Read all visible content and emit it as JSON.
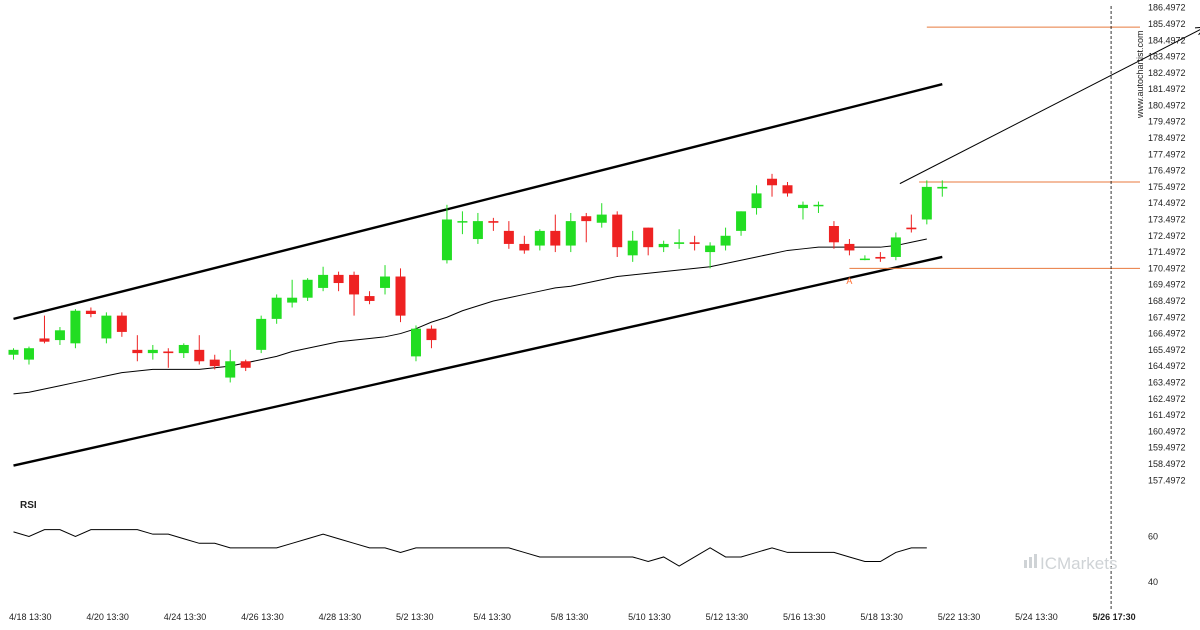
{
  "chart_data": [
    {
      "type": "candlestick",
      "y_ticks": [
        "186.4972",
        "185.4972",
        "184.4972",
        "183.4972",
        "182.4972",
        "181.4972",
        "180.4972",
        "179.4972",
        "178.4972",
        "177.4972",
        "176.4972",
        "175.4972",
        "174.4972",
        "173.4972",
        "172.4972",
        "171.4972",
        "170.4972",
        "169.4972",
        "168.4972",
        "167.4972",
        "166.4972",
        "165.4972",
        "164.4972",
        "163.4972",
        "162.4972",
        "161.4972",
        "160.4972",
        "159.4972",
        "158.4972",
        "157.4972"
      ],
      "ylim": [
        156.9,
        186.6
      ],
      "x_ticks": [
        "4/18 13:30",
        "4/20 13:30",
        "4/24 13:30",
        "4/26 13:30",
        "4/28 13:30",
        "5/2 13:30",
        "5/4 13:30",
        "5/8 13:30",
        "5/10 13:30",
        "5/12 13:30",
        "5/16 13:30",
        "5/18 13:30",
        "5/22 13:30",
        "5/24 13:30",
        "5/26 17:30"
      ],
      "x_tick_index": [
        1,
        6,
        11,
        16,
        21,
        26,
        31,
        36,
        41,
        46,
        51,
        56,
        61,
        66,
        71
      ],
      "candles": [
        {
          "o": 165.2,
          "h": 165.6,
          "l": 164.9,
          "c": 165.5
        },
        {
          "o": 164.9,
          "h": 165.7,
          "l": 164.6,
          "c": 165.6
        },
        {
          "o": 166.2,
          "h": 167.6,
          "l": 165.9,
          "c": 166.0
        },
        {
          "o": 166.1,
          "h": 166.9,
          "l": 165.8,
          "c": 166.7
        },
        {
          "o": 165.9,
          "h": 168.0,
          "l": 165.6,
          "c": 167.9
        },
        {
          "o": 167.9,
          "h": 168.1,
          "l": 167.5,
          "c": 167.7
        },
        {
          "o": 166.2,
          "h": 167.8,
          "l": 165.9,
          "c": 167.6
        },
        {
          "o": 167.6,
          "h": 167.8,
          "l": 166.3,
          "c": 166.6
        },
        {
          "o": 165.5,
          "h": 166.4,
          "l": 164.8,
          "c": 165.3
        },
        {
          "o": 165.3,
          "h": 165.8,
          "l": 164.9,
          "c": 165.5
        },
        {
          "o": 165.4,
          "h": 165.6,
          "l": 164.4,
          "c": 165.3
        },
        {
          "o": 165.3,
          "h": 165.9,
          "l": 165.0,
          "c": 165.8
        },
        {
          "o": 165.5,
          "h": 166.4,
          "l": 164.6,
          "c": 164.8
        },
        {
          "o": 164.9,
          "h": 165.2,
          "l": 164.3,
          "c": 164.5
        },
        {
          "o": 163.8,
          "h": 165.5,
          "l": 163.5,
          "c": 164.8
        },
        {
          "o": 164.8,
          "h": 164.9,
          "l": 164.2,
          "c": 164.4
        },
        {
          "o": 165.5,
          "h": 167.6,
          "l": 165.3,
          "c": 167.4
        },
        {
          "o": 167.4,
          "h": 168.9,
          "l": 167.1,
          "c": 168.7
        },
        {
          "o": 168.4,
          "h": 169.8,
          "l": 168.1,
          "c": 168.7
        },
        {
          "o": 168.7,
          "h": 169.9,
          "l": 168.5,
          "c": 169.8
        },
        {
          "o": 169.3,
          "h": 170.6,
          "l": 169.1,
          "c": 170.1
        },
        {
          "o": 170.1,
          "h": 170.3,
          "l": 169.1,
          "c": 169.6
        },
        {
          "o": 170.1,
          "h": 170.3,
          "l": 167.6,
          "c": 168.9
        },
        {
          "o": 168.8,
          "h": 169.1,
          "l": 168.3,
          "c": 168.5
        },
        {
          "o": 169.3,
          "h": 170.7,
          "l": 168.9,
          "c": 170.0
        },
        {
          "o": 170.0,
          "h": 170.5,
          "l": 167.2,
          "c": 167.6
        },
        {
          "o": 165.1,
          "h": 167.0,
          "l": 164.8,
          "c": 166.8
        },
        {
          "o": 166.8,
          "h": 167.0,
          "l": 165.6,
          "c": 166.1
        },
        {
          "o": 171.0,
          "h": 174.4,
          "l": 170.8,
          "c": 173.5
        },
        {
          "o": 173.4,
          "h": 174.0,
          "l": 172.6,
          "c": 173.4
        },
        {
          "o": 172.3,
          "h": 173.9,
          "l": 172.0,
          "c": 173.4
        },
        {
          "o": 173.4,
          "h": 173.6,
          "l": 172.8,
          "c": 173.3
        },
        {
          "o": 172.8,
          "h": 173.4,
          "l": 171.7,
          "c": 172.0
        },
        {
          "o": 172.0,
          "h": 172.5,
          "l": 171.4,
          "c": 171.6
        },
        {
          "o": 171.9,
          "h": 172.9,
          "l": 171.6,
          "c": 172.8
        },
        {
          "o": 172.8,
          "h": 173.8,
          "l": 171.5,
          "c": 171.9
        },
        {
          "o": 171.9,
          "h": 173.9,
          "l": 171.5,
          "c": 173.4
        },
        {
          "o": 173.7,
          "h": 173.9,
          "l": 172.1,
          "c": 173.4
        },
        {
          "o": 173.3,
          "h": 174.5,
          "l": 173.0,
          "c": 173.8
        },
        {
          "o": 173.8,
          "h": 174.0,
          "l": 171.2,
          "c": 171.8
        },
        {
          "o": 171.3,
          "h": 172.8,
          "l": 170.9,
          "c": 172.2
        },
        {
          "o": 173.0,
          "h": 173.0,
          "l": 171.3,
          "c": 171.8
        },
        {
          "o": 171.8,
          "h": 172.2,
          "l": 171.5,
          "c": 172.0
        },
        {
          "o": 172.0,
          "h": 172.9,
          "l": 171.7,
          "c": 172.1
        },
        {
          "o": 172.1,
          "h": 172.5,
          "l": 171.6,
          "c": 172.0
        },
        {
          "o": 171.5,
          "h": 172.1,
          "l": 170.5,
          "c": 171.9
        },
        {
          "o": 171.9,
          "h": 173.0,
          "l": 171.6,
          "c": 172.5
        },
        {
          "o": 172.8,
          "h": 174.0,
          "l": 172.5,
          "c": 174.0
        },
        {
          "o": 174.2,
          "h": 175.6,
          "l": 173.8,
          "c": 175.1
        },
        {
          "o": 176.0,
          "h": 176.3,
          "l": 174.9,
          "c": 175.6
        },
        {
          "o": 175.6,
          "h": 175.8,
          "l": 174.9,
          "c": 175.1
        },
        {
          "o": 174.2,
          "h": 174.6,
          "l": 173.5,
          "c": 174.4
        },
        {
          "o": 174.4,
          "h": 174.6,
          "l": 173.9,
          "c": 174.4
        },
        {
          "o": 173.1,
          "h": 173.4,
          "l": 171.7,
          "c": 172.1
        },
        {
          "o": 172.0,
          "h": 172.3,
          "l": 171.3,
          "c": 171.6
        },
        {
          "o": 171.1,
          "h": 171.3,
          "l": 171.0,
          "c": 171.1
        },
        {
          "o": 171.2,
          "h": 171.5,
          "l": 170.9,
          "c": 171.1
        },
        {
          "o": 171.2,
          "h": 172.7,
          "l": 171.0,
          "c": 172.4
        },
        {
          "o": 173.0,
          "h": 173.8,
          "l": 172.7,
          "c": 172.9
        },
        {
          "o": 173.5,
          "h": 175.9,
          "l": 173.2,
          "c": 175.5
        },
        {
          "o": 175.4,
          "h": 175.9,
          "l": 174.9,
          "c": 175.5
        }
      ],
      "sma": [
        162.8,
        162.9,
        163.1,
        163.3,
        163.5,
        163.7,
        163.9,
        164.1,
        164.2,
        164.3,
        164.3,
        164.3,
        164.3,
        164.4,
        164.5,
        164.7,
        164.9,
        165.1,
        165.4,
        165.6,
        165.8,
        166.0,
        166.1,
        166.2,
        166.3,
        166.5,
        166.8,
        167.2,
        167.5,
        167.9,
        168.2,
        168.5,
        168.7,
        168.9,
        169.1,
        169.3,
        169.4,
        169.6,
        169.8,
        170.0,
        170.1,
        170.2,
        170.3,
        170.4,
        170.5,
        170.6,
        170.8,
        171.0,
        171.2,
        171.4,
        171.6,
        171.7,
        171.8,
        171.8,
        171.8,
        171.8,
        171.8,
        171.9,
        172.1,
        172.3
      ],
      "channel_upper": [
        [
          0,
          167.4
        ],
        [
          60,
          181.8
        ]
      ],
      "channel_lower": [
        [
          0,
          158.4
        ],
        [
          60,
          171.2
        ]
      ],
      "hlines": [
        185.3,
        175.8,
        170.5
      ],
      "forecast_arrow": [
        [
          57,
          175.7
        ],
        [
          76,
          185.3
        ]
      ],
      "point_label": {
        "text": "A",
        "idx": 54,
        "y": 169.8
      },
      "cursor_index": 71
    },
    {
      "type": "line",
      "title": "RSI",
      "y_ticks": [
        "60",
        "40"
      ],
      "ylim": [
        33,
        76
      ],
      "values": [
        62,
        60,
        63,
        63,
        60,
        63,
        63,
        63,
        63,
        61,
        61,
        59,
        57,
        57,
        55,
        55,
        55,
        55,
        57,
        59,
        61,
        59,
        57,
        55,
        55,
        53,
        55,
        55,
        55,
        55,
        55,
        55,
        55,
        53,
        51,
        51,
        51,
        51,
        51,
        51,
        51,
        49,
        51,
        47,
        51,
        55,
        51,
        51,
        53,
        55,
        53,
        53,
        53,
        53,
        51,
        49,
        49,
        53,
        55,
        55
      ]
    }
  ],
  "watermark": "www.autochartist.com",
  "brand": "ICMarkets",
  "colors": {
    "bull": "#22dd22",
    "bear": "#ee2222",
    "channel": "#000000",
    "level": "#e87a3e",
    "sma": "#000000",
    "rsi": "#000000",
    "brand": "#cfd3d6"
  }
}
